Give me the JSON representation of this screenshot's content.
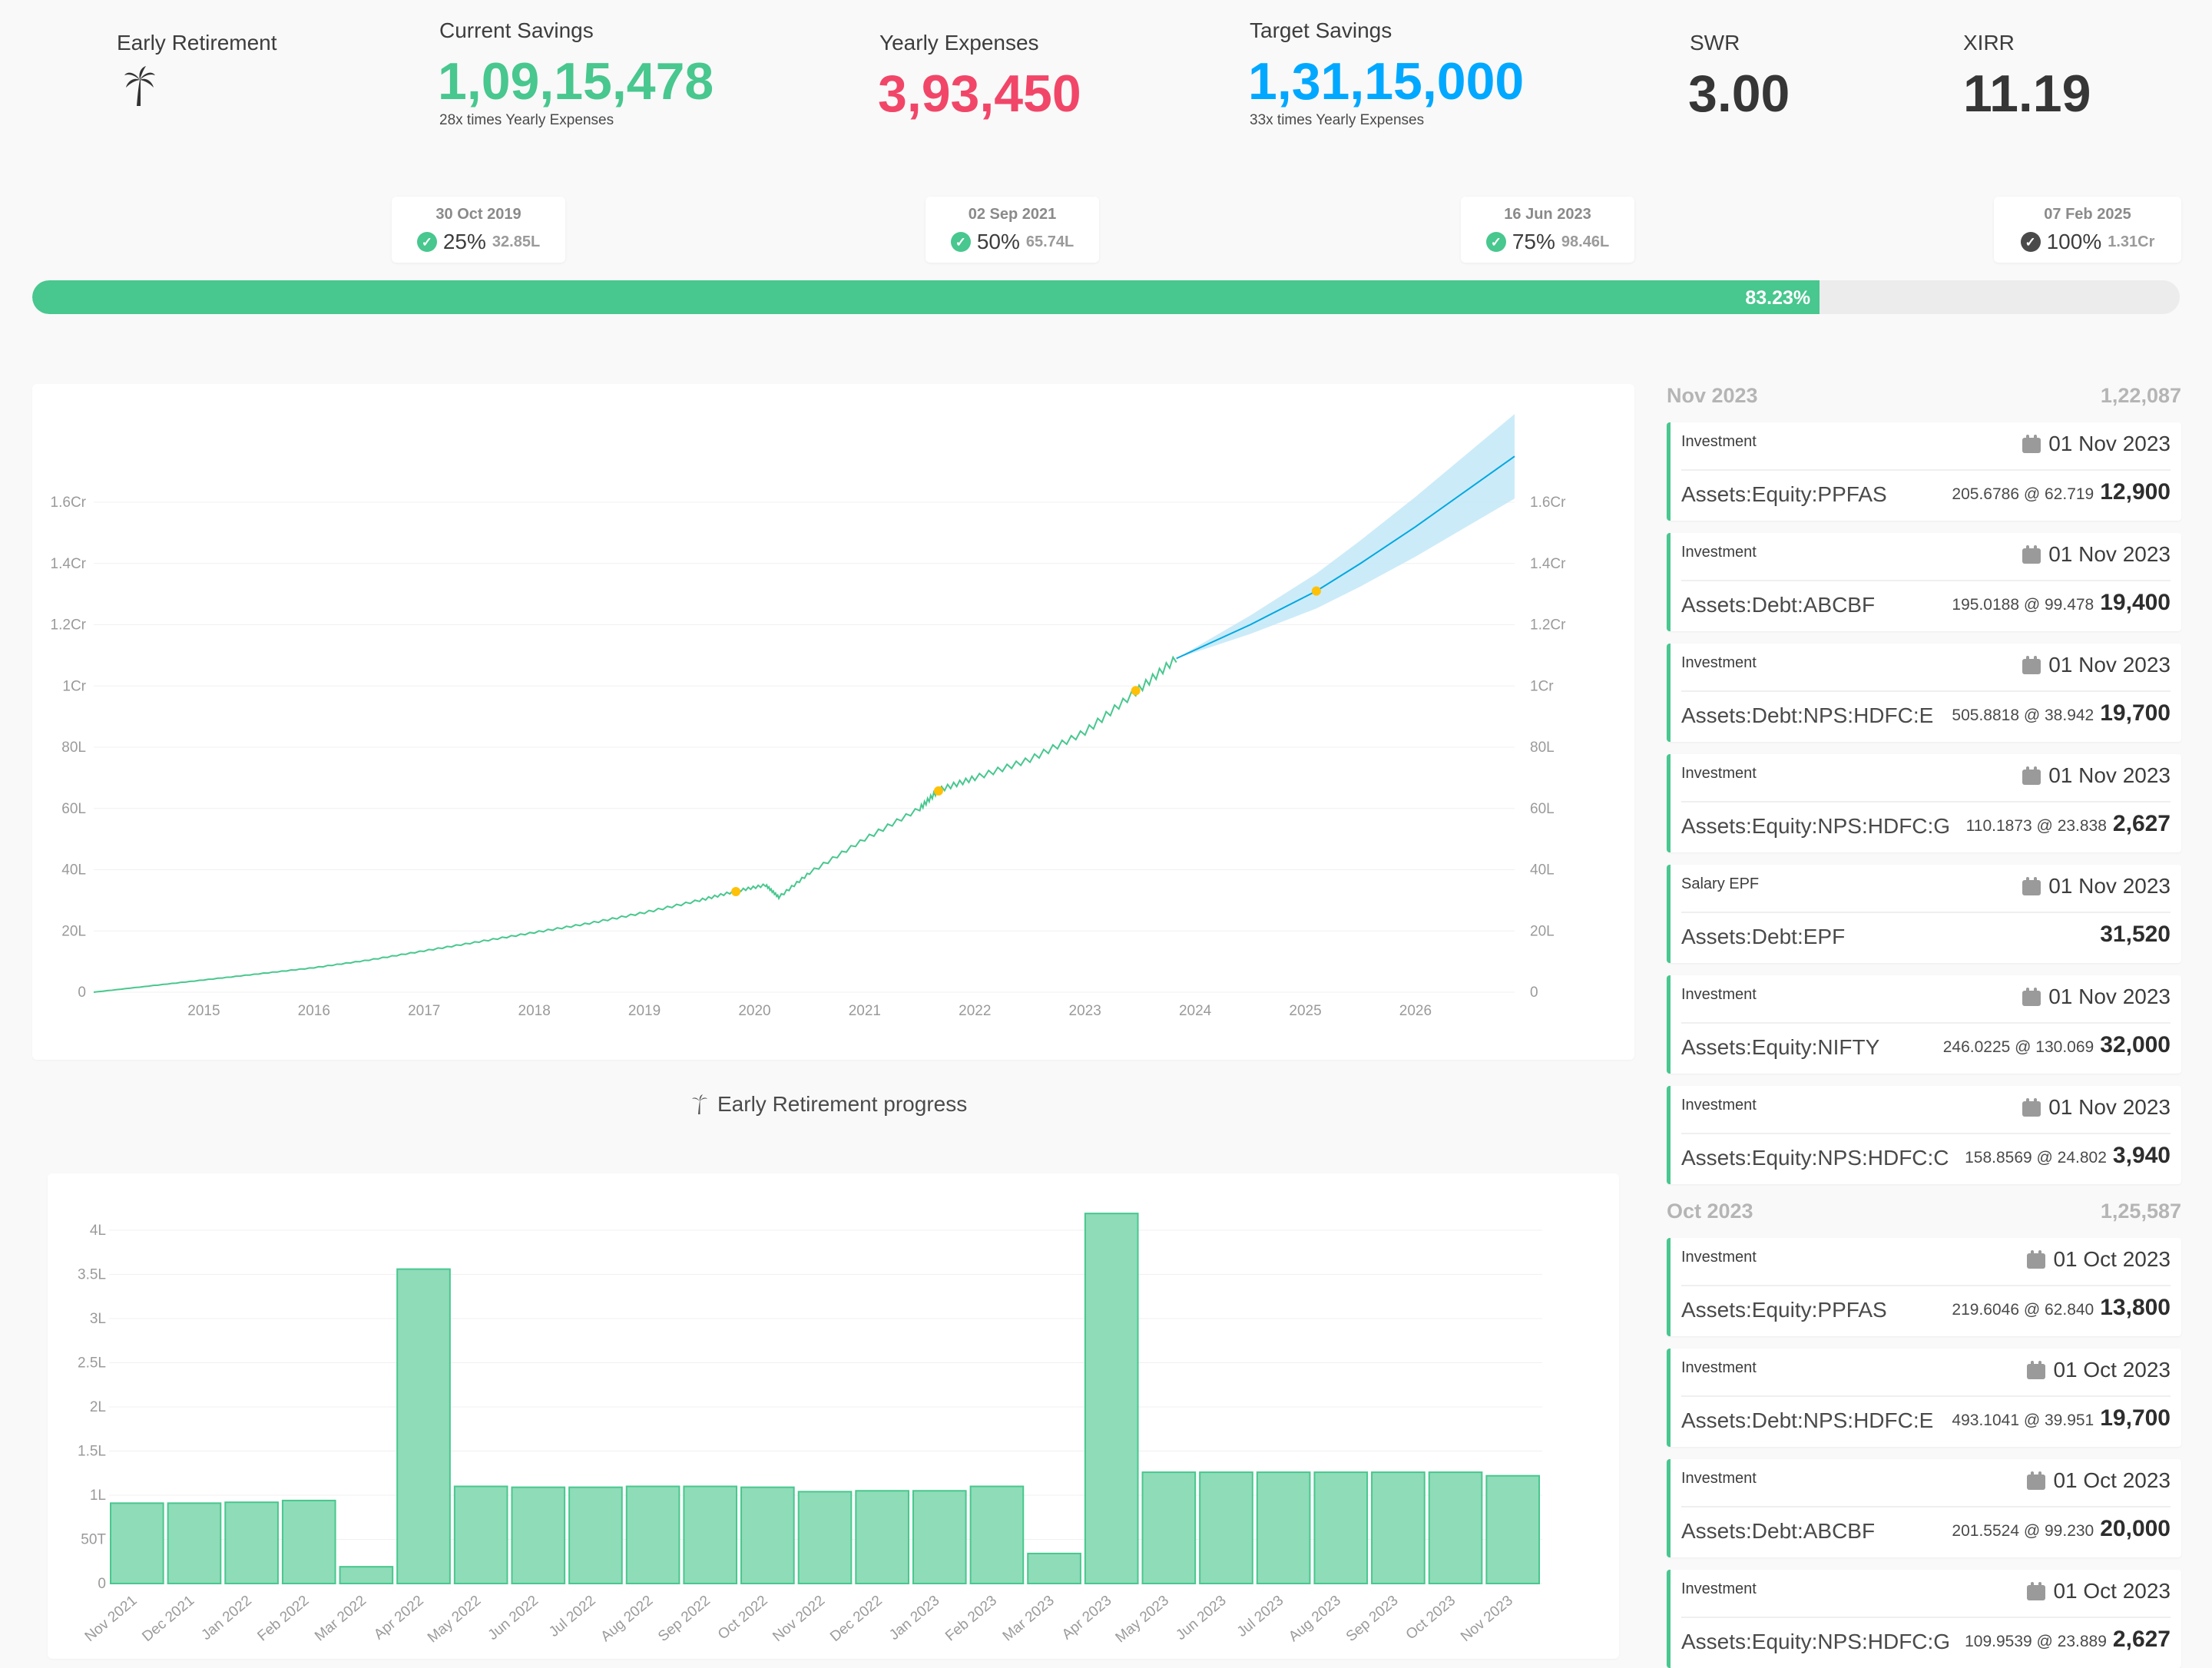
{
  "stats": {
    "early_retirement": {
      "label": "Early Retirement",
      "icon": "palm-tree-icon"
    },
    "current_savings": {
      "label": "Current Savings",
      "value": "1,09,15,478",
      "sub": "28x times Yearly Expenses",
      "color": "#48c78e"
    },
    "yearly_expenses": {
      "label": "Yearly Expenses",
      "value": "3,93,450",
      "color": "#f14668"
    },
    "target_savings": {
      "label": "Target Savings",
      "value": "1,31,15,000",
      "sub": "33x times Yearly Expenses",
      "color": "#00a8ff"
    },
    "swr": {
      "label": "SWR",
      "value": "3.00"
    },
    "xirr": {
      "label": "XIRR",
      "value": "11.19"
    }
  },
  "milestones": [
    {
      "date": "30 Oct 2019",
      "percent": "25%",
      "amount": "32.85L",
      "done": true
    },
    {
      "date": "02 Sep 2021",
      "percent": "50%",
      "amount": "65.74L",
      "done": true
    },
    {
      "date": "16 Jun 2023",
      "percent": "75%",
      "amount": "98.46L",
      "done": true
    },
    {
      "date": "07 Feb 2025",
      "percent": "100%",
      "amount": "1.31Cr",
      "done": false
    }
  ],
  "progress": {
    "label": "83.23%",
    "value": 0.8323
  },
  "section_title": "Early Retirement progress",
  "savings_chart": {
    "chart_data": {
      "type": "line",
      "y_ticks": [
        "0",
        "20L",
        "40L",
        "60L",
        "80L",
        "1Cr",
        "1.2Cr",
        "1.4Cr",
        "1.6Cr"
      ],
      "x_ticks": [
        "2015",
        "2016",
        "2017",
        "2018",
        "2019",
        "2020",
        "2021",
        "2022",
        "2023",
        "2024",
        "2025",
        "2026"
      ],
      "ylim": [
        0,
        16000000
      ],
      "series": [
        {
          "kind": "actual",
          "color": "#48c78e",
          "points": [
            [
              2014.0,
              0
            ],
            [
              2014.5,
              200000
            ],
            [
              2015.0,
              400000
            ],
            [
              2015.5,
              600000
            ],
            [
              2016.0,
              800000
            ],
            [
              2016.5,
              1050000
            ],
            [
              2017.0,
              1350000
            ],
            [
              2017.5,
              1650000
            ],
            [
              2018.0,
              1950000
            ],
            [
              2018.5,
              2250000
            ],
            [
              2019.0,
              2600000
            ],
            [
              2019.5,
              3000000
            ],
            [
              2019.83,
              3300000
            ],
            [
              2020.1,
              3500000
            ],
            [
              2020.22,
              3100000
            ],
            [
              2020.5,
              3900000
            ],
            [
              2021.0,
              5000000
            ],
            [
              2021.5,
              6000000
            ],
            [
              2021.67,
              6600000
            ],
            [
              2022.0,
              7000000
            ],
            [
              2022.5,
              7600000
            ],
            [
              2023.0,
              8500000
            ],
            [
              2023.46,
              9800000
            ],
            [
              2023.83,
              10900000
            ]
          ]
        },
        {
          "kind": "projection",
          "color": "#00a8e0",
          "band_color": "#bfe6f7",
          "points": [
            [
              2023.83,
              10900000
            ],
            [
              2024.5,
              12000000
            ],
            [
              2025.1,
              13100000
            ],
            [
              2025.5,
              14000000
            ],
            [
              2026.0,
              15200000
            ],
            [
              2026.9,
              17500000
            ]
          ]
        }
      ],
      "milestone_points": [
        [
          2019.83,
          3285000
        ],
        [
          2021.67,
          6574000
        ],
        [
          2023.46,
          9846000
        ],
        [
          2025.1,
          13100000
        ]
      ],
      "milestone_color": "#ffc107"
    }
  },
  "monthly_chart": {
    "chart_data": {
      "type": "bar",
      "categories": [
        "Nov 2021",
        "Dec 2021",
        "Jan 2022",
        "Feb 2022",
        "Mar 2022",
        "Apr 2022",
        "May 2022",
        "Jun 2022",
        "Jul 2022",
        "Aug 2022",
        "Sep 2022",
        "Oct 2022",
        "Nov 2022",
        "Dec 2022",
        "Jan 2023",
        "Feb 2023",
        "Mar 2023",
        "Apr 2023",
        "May 2023",
        "Jun 2023",
        "Jul 2023",
        "Aug 2023",
        "Sep 2023",
        "Oct 2023",
        "Nov 2023"
      ],
      "values": [
        91000,
        91000,
        92000,
        94000,
        19000,
        356000,
        110000,
        109000,
        109000,
        110000,
        110000,
        109000,
        104000,
        105000,
        105000,
        110000,
        34000,
        419000,
        126000,
        126000,
        126000,
        126000,
        126000,
        126000,
        122000
      ],
      "y_ticks": [
        "0",
        "50T",
        "1L",
        "1.5L",
        "2L",
        "2.5L",
        "3L",
        "3.5L",
        "4L"
      ],
      "ylim": [
        0,
        400000
      ],
      "color": "#8fdcb9",
      "border_color": "#48c78e"
    }
  },
  "transactions": [
    {
      "month": "Nov 2023",
      "total": "1,22,087",
      "items": [
        {
          "desc": "Investment",
          "date": "01 Nov 2023",
          "account": "Assets:Equity:PPFAS",
          "units": "205.6786 @ 62.719",
          "amount": "12,900"
        },
        {
          "desc": "Investment",
          "date": "01 Nov 2023",
          "account": "Assets:Debt:ABCBF",
          "units": "195.0188 @ 99.478",
          "amount": "19,400"
        },
        {
          "desc": "Investment",
          "date": "01 Nov 2023",
          "account": "Assets:Debt:NPS:HDFC:E",
          "units": "505.8818 @ 38.942",
          "amount": "19,700"
        },
        {
          "desc": "Investment",
          "date": "01 Nov 2023",
          "account": "Assets:Equity:NPS:HDFC:G",
          "units": "110.1873 @ 23.838",
          "amount": "2,627"
        },
        {
          "desc": "Salary EPF",
          "date": "01 Nov 2023",
          "account": "Assets:Debt:EPF",
          "units": "",
          "amount": "31,520"
        },
        {
          "desc": "Investment",
          "date": "01 Nov 2023",
          "account": "Assets:Equity:NIFTY",
          "units": "246.0225 @ 130.069",
          "amount": "32,000"
        },
        {
          "desc": "Investment",
          "date": "01 Nov 2023",
          "account": "Assets:Equity:NPS:HDFC:C",
          "units": "158.8569 @ 24.802",
          "amount": "3,940"
        }
      ]
    },
    {
      "month": "Oct 2023",
      "total": "1,25,587",
      "items": [
        {
          "desc": "Investment",
          "date": "01 Oct 2023",
          "account": "Assets:Equity:PPFAS",
          "units": "219.6046 @ 62.840",
          "amount": "13,800"
        },
        {
          "desc": "Investment",
          "date": "01 Oct 2023",
          "account": "Assets:Debt:NPS:HDFC:E",
          "units": "493.1041 @ 39.951",
          "amount": "19,700"
        },
        {
          "desc": "Investment",
          "date": "01 Oct 2023",
          "account": "Assets:Debt:ABCBF",
          "units": "201.5524 @ 99.230",
          "amount": "20,000"
        },
        {
          "desc": "Investment",
          "date": "01 Oct 2023",
          "account": "Assets:Equity:NPS:HDFC:G",
          "units": "109.9539 @ 23.889",
          "amount": "2,627"
        }
      ]
    }
  ]
}
